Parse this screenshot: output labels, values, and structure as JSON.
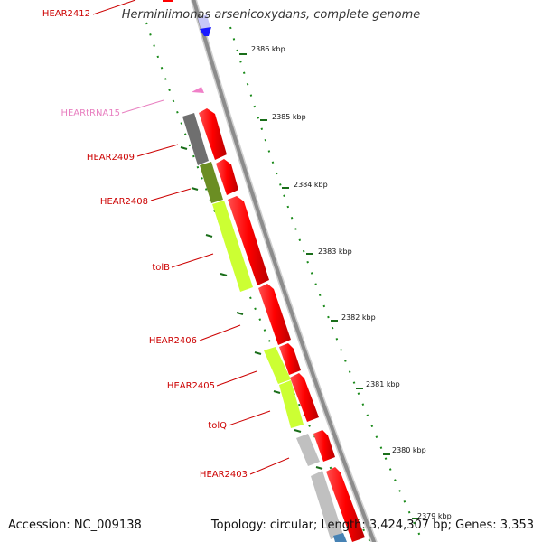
{
  "title": "Herminiimonas arsenicoxydans, complete genome",
  "footer": {
    "accession": "Accession: NC_009138",
    "topology": "Topology: circular; Length: 3,424,307 bp; Genes: 3,353"
  },
  "colors": {
    "gene_label": "#cc0000",
    "trna_label": "#e87fc0",
    "forward_gene": "#ff0000",
    "backbone": "#999999",
    "tick": "#1a7a1a"
  },
  "gene_labels": [
    {
      "text": "HEAR2412",
      "type": "gene"
    },
    {
      "text": "HEARtRNA15",
      "type": "trna"
    },
    {
      "text": "HEAR2409",
      "type": "gene"
    },
    {
      "text": "HEAR2408",
      "type": "gene"
    },
    {
      "text": "tolB",
      "type": "gene"
    },
    {
      "text": "HEAR2406",
      "type": "gene"
    },
    {
      "text": "HEAR2405",
      "type": "gene"
    },
    {
      "text": "tolQ",
      "type": "gene"
    },
    {
      "text": "HEAR2403",
      "type": "gene"
    }
  ],
  "scale_ticks": [
    "2386 kbp",
    "2385 kbp",
    "2384 kbp",
    "2383 kbp",
    "2382 kbp",
    "2381 kbp",
    "2380 kbp",
    "2379 kbp"
  ]
}
